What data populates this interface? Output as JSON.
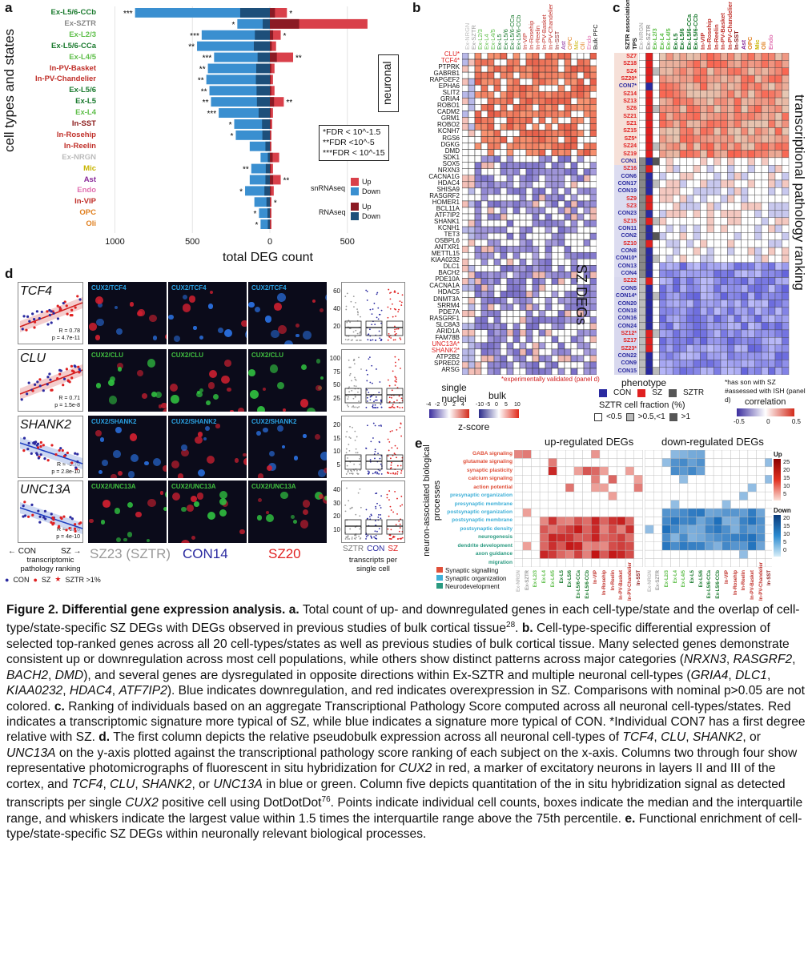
{
  "panel_labels": {
    "a": "a",
    "b": "b",
    "c": "c",
    "d": "d",
    "e": "e"
  },
  "panel_a": {
    "ylabel": "cell types and states",
    "xlabel": "total DEG count",
    "ticks": [
      "1000",
      "500",
      "0",
      "500"
    ],
    "neuronal_label": "neuronal",
    "fdr_lines": [
      "*FDR < 10^-1.5",
      "**FDR <10^-5",
      "***FDR < 10^-15"
    ],
    "legend": {
      "snrnaseq": "snRNAseq",
      "rnaseq": "RNAseq",
      "up": "Up",
      "down": "Down"
    },
    "colors": {
      "up": "#d9404a",
      "down": "#3a8fd0",
      "up_dark": "#8b1a24",
      "down_dark": "#1d4f7a"
    },
    "cells": [
      {
        "name": "Ex-L5/6-CCb",
        "color": "#1a7a2e",
        "down": 870,
        "up": 110,
        "sig_l": "***",
        "sig_r": "*"
      },
      {
        "name": "Ex-SZTR",
        "color": "#888888",
        "down": 210,
        "up": 630,
        "sig_l": "*",
        "sig_r": ""
      },
      {
        "name": "Ex-L2/3",
        "color": "#5fbf4a",
        "down": 440,
        "up": 70,
        "sig_l": "***",
        "sig_r": "*"
      },
      {
        "name": "Ex-L5/6-CCa",
        "color": "#1a7a2e",
        "down": 470,
        "up": 40,
        "sig_l": "**",
        "sig_r": ""
      },
      {
        "name": "Ex-L4/5",
        "color": "#5fbf4a",
        "down": 360,
        "up": 150,
        "sig_l": "***",
        "sig_r": "**"
      },
      {
        "name": "In-PV-Basket",
        "color": "#c0302a",
        "down": 400,
        "up": 30,
        "sig_l": "**",
        "sig_r": ""
      },
      {
        "name": "In-PV-Chandelier",
        "color": "#c0302a",
        "down": 410,
        "up": 20,
        "sig_l": "**",
        "sig_r": ""
      },
      {
        "name": "Ex-L5/6",
        "color": "#1a7a2e",
        "down": 390,
        "up": 30,
        "sig_l": "**",
        "sig_r": ""
      },
      {
        "name": "Ex-L5",
        "color": "#1a7a2e",
        "down": 380,
        "up": 90,
        "sig_l": "**",
        "sig_r": "**"
      },
      {
        "name": "Ex-L4",
        "color": "#5fbf4a",
        "down": 330,
        "up": 20,
        "sig_l": "***",
        "sig_r": ""
      },
      {
        "name": "In-SST",
        "color": "#8b1a1a",
        "down": 230,
        "up": 15,
        "sig_l": "*",
        "sig_r": ""
      },
      {
        "name": "In-Rosehip",
        "color": "#c0302a",
        "down": 220,
        "up": 10,
        "sig_l": "*",
        "sig_r": ""
      },
      {
        "name": "In-Reelin",
        "color": "#c0302a",
        "down": 130,
        "up": 10,
        "sig_l": "",
        "sig_r": ""
      },
      {
        "name": "Ex-NRGN",
        "color": "#bbbbbb",
        "down": 60,
        "up": 60,
        "sig_l": "",
        "sig_r": ""
      },
      {
        "name": "Mic",
        "color": "#c8b400",
        "down": 120,
        "up": 20,
        "sig_l": "**",
        "sig_r": ""
      },
      {
        "name": "Ast",
        "color": "#8a2a9a",
        "down": 130,
        "up": 70,
        "sig_l": "",
        "sig_r": "**"
      },
      {
        "name": "Endo",
        "color": "#e070b0",
        "down": 160,
        "up": 25,
        "sig_l": "*",
        "sig_r": ""
      },
      {
        "name": "In-VIP",
        "color": "#c0302a",
        "down": 100,
        "up": 10,
        "sig_l": "",
        "sig_r": "*"
      },
      {
        "name": "OPC",
        "color": "#e08020",
        "down": 70,
        "up": 10,
        "sig_l": "*",
        "sig_r": ""
      },
      {
        "name": "Oli",
        "color": "#e08020",
        "down": 60,
        "up": 10,
        "sig_l": "*",
        "sig_r": ""
      }
    ]
  },
  "panel_b": {
    "col_headers": [
      "Ex-NRGN",
      "Ex-SZTR",
      "Ex-L2/3",
      "Ex-L4",
      "Ex-L4/5",
      "Ex-L5",
      "Ex-L5/6",
      "Ex-L5/6-CCa",
      "Ex-L5/6-CCb",
      "In-VIP",
      "In-Rosehip",
      "In-Reelin",
      "In-PV-Basket",
      "In-PV-Chandelier",
      "In-SST",
      "Ast",
      "OPC",
      "Mic",
      "Oli",
      "Endo",
      "Bulk PFC"
    ],
    "genes": [
      "CLU*",
      "TCF4*",
      "PTPRK",
      "GABRB1",
      "RAPGEF2",
      "EPHA6",
      "SLIT2",
      "GRIA4",
      "ROBO1",
      "CADM2",
      "GRM1",
      "ROBO2",
      "KCNH7",
      "RGS6",
      "DGKG",
      "DMD",
      "SDK1",
      "SOX5",
      "NRXN3",
      "CACNA1G",
      "HDAC4",
      "SHISA9",
      "RASGRF2",
      "HOMER1",
      "BCL11A",
      "ATF7IP2",
      "SHANK1",
      "KCNH1",
      "TET3",
      "OSBPL6",
      "ANTXR1",
      "METTL15",
      "KIAA0232",
      "DLC1",
      "BACH2",
      "PDE10A",
      "CACNA1A",
      "HDAC5",
      "DNMT3A",
      "SRRM4",
      "PDE7A",
      "RASGRF1",
      "SLC8A3",
      "ARID1A",
      "FAM78B",
      "UNC13A*",
      "SHANK2*",
      "ATP2B2",
      "SPRED2",
      "ARSG"
    ],
    "side_title": "SZ DEGs",
    "footnote": "*experimentally validated (panel d)",
    "legend_single": "single nuclei",
    "legend_bulk": "bulk",
    "legend_ticks_single": [
      "-4",
      "-2",
      "0",
      "2",
      "4"
    ],
    "legend_ticks_bulk": [
      "-10",
      "-5",
      "0",
      "5",
      "10"
    ],
    "zscore": "z-score"
  },
  "panel_c": {
    "col_headers": [
      "SZTR association",
      "TPS",
      "Ex-NRGN",
      "Ex-SZTR",
      "Ex-L2/3",
      "Ex-L4",
      "Ex-L4/5",
      "Ex-L5",
      "Ex-L5/6",
      "Ex-L5/6-CCa",
      "Ex-L5/6-CCb",
      "In-VIP",
      "In-Rosehip",
      "In-Reelin",
      "In-PV-Basket",
      "In-PV-Chandelier",
      "In-SST",
      "Ast",
      "OPC",
      "Mic",
      "Oli",
      "Endo"
    ],
    "individuals": [
      "SZ7",
      "SZ18",
      "SZ4",
      "SZ20*",
      "CON7*",
      "SZ14",
      "SZ13",
      "SZ6",
      "SZ21",
      "SZ1",
      "SZ15",
      "SZ5*",
      "SZ24",
      "SZ19",
      "CON1",
      "SZ16",
      "CON6",
      "CON17",
      "CON19",
      "SZ9",
      "SZ3",
      "CON23",
      "SZ15",
      "CON11",
      "CON2",
      "SZ10",
      "CON8",
      "CON10*",
      "CON13",
      "CON4",
      "SZ22",
      "CON5",
      "CON14*",
      "CON20",
      "CON18",
      "CON16",
      "CON24",
      "SZ12*",
      "SZ17",
      "SZ23*",
      "CON22",
      "CON9",
      "CON15"
    ],
    "side_title": "transcriptional pathology ranking",
    "phenotype_title": "phenotype",
    "phenotype": [
      "CON",
      "SZ",
      "SZTR"
    ],
    "sztr_title": "SZTR cell fraction (%)",
    "sztr_levels": [
      "<0.5",
      ">0.5,<1",
      ">1"
    ],
    "notes": [
      "*has son with SZ",
      "#assessed with ISH (panel d)"
    ],
    "correlation_title": "correlation",
    "correlation_ticks": [
      "-0.5",
      "0",
      "0.5"
    ]
  },
  "panel_d": {
    "genes": [
      "TCF4",
      "CLU",
      "SHANK2",
      "UNC13A"
    ],
    "stats": [
      [
        "R = 0.78",
        "p = 4.7e-11"
      ],
      [
        "R = 0.71",
        "p = 1.5e-8"
      ],
      [
        "R = -0.76",
        "p = 2.8e-10"
      ],
      [
        "R = -0.76",
        "p = 4e-10"
      ]
    ],
    "photo_titles": [
      "CUX2/TCF4",
      "CUX2/CLU",
      "CUX2/SHANK2",
      "CUX2/UNC13A"
    ],
    "columns": [
      "SZ23 (SZTR)",
      "CON14",
      "SZ20"
    ],
    "xaxis": [
      "← CON",
      "SZ →"
    ],
    "xaxis_label": "transcriptomic pathology ranking",
    "legend": [
      "CON",
      "SZ",
      "SZTR >1%"
    ],
    "yticks": [
      [
        "60",
        "40",
        "20"
      ],
      [
        "100",
        "75",
        "50",
        "25"
      ],
      [
        "20",
        "15",
        "10",
        "5"
      ],
      [
        "40",
        "30",
        "20",
        "10"
      ]
    ],
    "quant_xlabels": [
      "SZTR",
      "CON",
      "SZ"
    ],
    "quant_label": "transcripts per single cell"
  },
  "panel_e": {
    "title_up": "up-regulated DEGs",
    "title_down": "down-regulated DEGs",
    "ylabel": "neuron-associated biological processes",
    "processes": [
      {
        "name": "GABA signaling",
        "group": "syn"
      },
      {
        "name": "glutamate signaling",
        "group": "syn"
      },
      {
        "name": "synaptic plasticity",
        "group": "syn"
      },
      {
        "name": "calcium signaling",
        "group": "syn"
      },
      {
        "name": "action potential",
        "group": "syn"
      },
      {
        "name": "presynaptic organization",
        "group": "org"
      },
      {
        "name": "presynaptic membrane",
        "group": "org"
      },
      {
        "name": "postsynaptic organization",
        "group": "org"
      },
      {
        "name": "postsynaptic membrane",
        "group": "org"
      },
      {
        "name": "postsynaptic density",
        "group": "org"
      },
      {
        "name": "neurogenesis",
        "group": "dev"
      },
      {
        "name": "dendrite development",
        "group": "dev"
      },
      {
        "name": "axon guidance",
        "group": "dev"
      },
      {
        "name": "migration",
        "group": "dev"
      }
    ],
    "group_legend": [
      "Synaptic signalling",
      "Synaptic organization",
      "Neurodevelopment"
    ],
    "group_colors": {
      "syn": "#e0503a",
      "org": "#3fb0d8",
      "dev": "#2a9a80"
    },
    "up_scale": {
      "title": "Up",
      "ticks": [
        "25",
        "20",
        "15",
        "10",
        "5"
      ]
    },
    "down_scale": {
      "title": "Down",
      "ticks": [
        "20",
        "15",
        "10",
        "5",
        "0"
      ]
    },
    "cells": [
      "Ex-NRGN",
      "Ex-SZTR",
      "Ex-L2/3",
      "Ex-L4",
      "Ex-L4/5",
      "Ex-L5",
      "Ex-L5/6",
      "Ex-L5/6-CCa",
      "Ex-L5/6-CCb",
      "In-VIP",
      "In-Rosehip",
      "In-Reelin",
      "In-PV-Basket",
      "In-PV-Chandelier",
      "In-SST"
    ]
  },
  "caption": {
    "title": "Figure 2. Differential gene expression analysis.",
    "a_label": "a.",
    "a_text": "Total count of up- and downregulated genes in each cell-type/state and the overlap of cell-type/state-specific SZ DEGs with DEGs observed in previous studies of bulk cortical tissue",
    "a_ref": "28",
    "b_label": "b.",
    "b_text1": "Cell-type-specific differential expression of selected top-ranked genes across all 20 cell-types/states as well as previous studies of bulk cortical tissue. Many selected genes demonstrate consistent up or downregulation across most cell populations, while others show distinct patterns across major categories (",
    "b_genes1": "NRXN3",
    "b_sep1": ", ",
    "b_genes2": "RASGRF2",
    "b_sep2": ", ",
    "b_genes3": "BACH2",
    "b_sep3": ", ",
    "b_genes4": "DMD",
    "b_text2": "), and several genes are dysregulated in opposite directions within Ex-SZTR and multiple neuronal cell-types (",
    "b_genes5": "GRIA4",
    "b_sep5": ", ",
    "b_genes6": "DLC1",
    "b_sep6": ", ",
    "b_genes7": "KIAA0232",
    "b_sep7": ", ",
    "b_genes8": "HDAC4",
    "b_sep8": ", ",
    "b_genes9": "ATF7IP2",
    "b_text3": "). Blue indicates downregulation, and red indicates overexpression in SZ. Comparisons with nominal p>0.05 are not colored.",
    "c_label": "c.",
    "c_text": "Ranking of individuals based on an aggregate Transcriptional Pathology Score computed across all neuronal cell-types/states. Red indicates a transcriptomic signature more typical of SZ, while blue indicates a signature more typical of CON. *Individual CON7 has a first degree relative with SZ.",
    "d_label": "d.",
    "d_text1": "The first column depicts the relative pseudobulk expression across all neuronal cell-types of",
    "d_g1": "TCF4",
    "d_g2": "CLU",
    "d_g3": "SHANK2",
    "d_or": "or",
    "d_g4": "UNC13A",
    "d_text2": "on the y-axis plotted against the transcriptional pathology score ranking of each subject on the x-axis. Columns two through four show representative photomicrographs of fluorescent in situ hybridization for",
    "d_g5": "CUX2",
    "d_text3": "in red, a marker of excitatory neurons in layers II and III of the cortex, and",
    "d_g6": "TCF4",
    "d_g7": "CLU",
    "d_g8": "SHANK2",
    "d_g9": "UNC13A",
    "d_text4": "in blue or green. Column five depicts quantitation of the in situ hybridization signal as detected transcripts per single",
    "d_g10": "CUX2",
    "d_text5": "positive cell using DotDotDot",
    "d_ref": "76",
    "d_text6": ". Points indicate individual cell counts, boxes indicate the median and the interquartile range, and whiskers indicate the largest value within 1.5 times the interquartile range above the 75th percentile.",
    "e_label": "e.",
    "e_text": "Functional enrichment of cell-type/state-specific SZ DEGs within neuronally relevant biological processes."
  }
}
